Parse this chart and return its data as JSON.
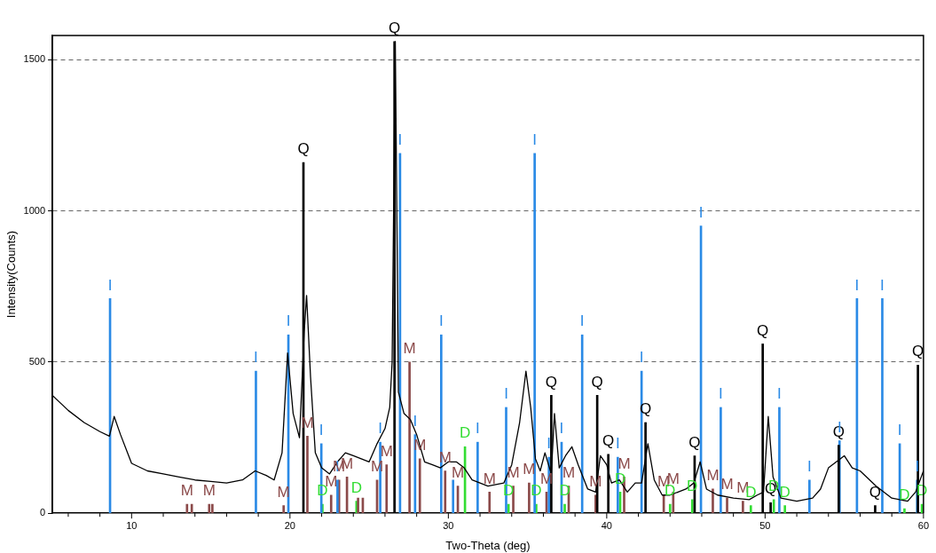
{
  "chart_data": {
    "type": "line",
    "xlabel": "Two-Theta (deg)",
    "ylabel": "Intensity(Counts)",
    "xlim": [
      5,
      60
    ],
    "ylim": [
      0,
      1580
    ],
    "yticks": [
      0,
      500,
      1000,
      1500
    ],
    "xticks": [
      {
        "value": 6,
        "label": null
      },
      {
        "value": 8,
        "label": null
      },
      10,
      {
        "value": 12,
        "label": null
      },
      {
        "value": 14,
        "label": null
      },
      {
        "value": 16,
        "label": null
      },
      {
        "value": 18,
        "label": null
      },
      20,
      {
        "value": 22,
        "label": null
      },
      {
        "value": 24,
        "label": null
      },
      {
        "value": 26,
        "label": null
      },
      {
        "value": 28,
        "label": null
      },
      30,
      {
        "value": 32,
        "label": null
      },
      {
        "value": 34,
        "label": null
      },
      {
        "value": 36,
        "label": null
      },
      {
        "value": 38,
        "label": null
      },
      40,
      {
        "value": 42,
        "label": null
      },
      {
        "value": 44,
        "label": null
      },
      {
        "value": 46,
        "label": null
      },
      {
        "value": 48,
        "label": null
      },
      50,
      {
        "value": 52,
        "label": null
      },
      {
        "value": 54,
        "label": null
      },
      {
        "value": 56,
        "label": null
      },
      {
        "value": 58,
        "label": null
      },
      60
    ],
    "grid": "y",
    "legend": false,
    "marker": "none",
    "series": [
      {
        "color": "#000000",
        "x": [
          5,
          6,
          7,
          8,
          8.6,
          8.9,
          9.3,
          10,
          11,
          12,
          13,
          14,
          15,
          16,
          17,
          17.8,
          18.5,
          19,
          19.5,
          19.85,
          20.2,
          20.6,
          20.9,
          21.05,
          21.3,
          21.6,
          22,
          22.5,
          23,
          23.5,
          24,
          24.5,
          25,
          25.5,
          26,
          26.3,
          26.45,
          26.65,
          26.85,
          27.2,
          27.6,
          28,
          28.5,
          29,
          29.5,
          30,
          30.5,
          31,
          31.5,
          32,
          32.5,
          33,
          33.5,
          34,
          34.5,
          34.9,
          35.2,
          35.5,
          35.8,
          36.1,
          36.5,
          36.7,
          37,
          37.4,
          37.8,
          38.2,
          38.8,
          39.3,
          39.6,
          40,
          40.3,
          40.8,
          41.3,
          41.8,
          42.2,
          42.6,
          43,
          43.5,
          44,
          44.5,
          45,
          45.5,
          45.9,
          46.3,
          47,
          48,
          49,
          49.5,
          49.9,
          50.2,
          50.5,
          51,
          52,
          53,
          53.5,
          54,
          54.5,
          55,
          55.5,
          56,
          57,
          58,
          59,
          59.5,
          60
        ],
        "values": [
          390,
          340,
          300,
          270,
          255,
          320,
          260,
          165,
          140,
          130,
          120,
          110,
          105,
          100,
          110,
          140,
          125,
          110,
          200,
          530,
          330,
          250,
          600,
          720,
          450,
          200,
          150,
          130,
          170,
          200,
          190,
          180,
          170,
          230,
          280,
          350,
          500,
          1560,
          400,
          330,
          310,
          260,
          170,
          160,
          150,
          170,
          170,
          150,
          110,
          100,
          90,
          95,
          100,
          160,
          300,
          470,
          350,
          180,
          140,
          200,
          130,
          330,
          150,
          190,
          220,
          160,
          80,
          70,
          190,
          160,
          100,
          110,
          70,
          100,
          100,
          230,
          110,
          60,
          60,
          70,
          80,
          100,
          170,
          80,
          60,
          50,
          45,
          60,
          70,
          320,
          120,
          50,
          40,
          50,
          80,
          150,
          170,
          190,
          150,
          140,
          90,
          50,
          40,
          70,
          140
        ]
      },
      {
        "type": "bar",
        "color": "#000000",
        "x": [
          20.85,
          26.6,
          36.5,
          39.4,
          40.1,
          42.45,
          45.55,
          49.85,
          50.35,
          54.65,
          56.95,
          59.65
        ],
        "values": [
          1160,
          1560,
          390,
          390,
          195,
          300,
          190,
          560,
          35,
          225,
          25,
          490
        ],
        "value_labels": [
          "Q",
          "Q",
          "Q",
          "Q",
          "Q",
          "Q",
          "Q",
          "Q",
          "Q",
          "Q",
          "Q",
          "Q"
        ]
      },
      {
        "type": "bar",
        "color": "#2a8ae6",
        "x": [
          8.64,
          17.85,
          19.9,
          21.98,
          23.0,
          25.7,
          26.95,
          27.9,
          29.55,
          30.3,
          31.85,
          33.65,
          35.45,
          36.35,
          37.15,
          38.45,
          40.7,
          42.2,
          45.95,
          47.2,
          50.9,
          52.8,
          54.7,
          55.8,
          57.4,
          58.5,
          59.6
        ],
        "values": [
          710,
          470,
          590,
          230,
          110,
          235,
          1190,
          260,
          590,
          110,
          235,
          350,
          1190,
          185,
          235,
          590,
          185,
          470,
          950,
          350,
          350,
          110,
          240,
          710,
          710,
          230,
          110
        ],
        "value_labels": [
          "I",
          "I",
          "I",
          "I",
          "I",
          "I",
          "I",
          "I",
          "I",
          null,
          "I",
          "I",
          "I",
          "I",
          "I",
          "I",
          "I",
          "I",
          "I",
          "I",
          "I",
          "I",
          "I",
          "I",
          "I",
          "I",
          "I"
        ]
      },
      {
        "type": "bar",
        "color": "#8b4a4a",
        "x": [
          13.5,
          13.8,
          14.9,
          15.1,
          19.6,
          21.1,
          22.6,
          23.1,
          23.6,
          24.3,
          24.6,
          25.5,
          26.1,
          27.55,
          28.2,
          29.8,
          30.6,
          32.6,
          34.1,
          35.1,
          36.2,
          37.6,
          39.3,
          41.1,
          43.6,
          44.2,
          46.7,
          47.6,
          48.6
        ],
        "values": [
          30,
          30,
          30,
          30,
          25,
          255,
          60,
          110,
          120,
          50,
          50,
          110,
          160,
          500,
          180,
          140,
          90,
          70,
          90,
          100,
          70,
          90,
          60,
          120,
          60,
          70,
          80,
          50,
          40
        ],
        "value_labels": [
          "M",
          null,
          "M",
          null,
          "M",
          "M",
          "M",
          "M",
          "M",
          null,
          null,
          "M",
          "M",
          "M",
          "M",
          "M",
          "M",
          "M",
          "M",
          "M",
          "M",
          "M",
          "M",
          "M",
          "M",
          "M",
          "M",
          "M",
          "M"
        ]
      },
      {
        "type": "bar",
        "color": "#33dd33",
        "x": [
          22.05,
          24.2,
          31.05,
          33.8,
          35.55,
          37.35,
          40.85,
          44.0,
          45.4,
          49.1,
          50.55,
          51.25,
          58.8,
          59.9
        ],
        "values": [
          30,
          40,
          220,
          30,
          30,
          30,
          70,
          30,
          45,
          25,
          45,
          25,
          15,
          30
        ],
        "value_labels": [
          "D",
          "D",
          "D",
          "D",
          "D",
          "D",
          "D",
          "D",
          "D",
          "D",
          "D",
          "D",
          "D",
          "D"
        ]
      }
    ]
  }
}
